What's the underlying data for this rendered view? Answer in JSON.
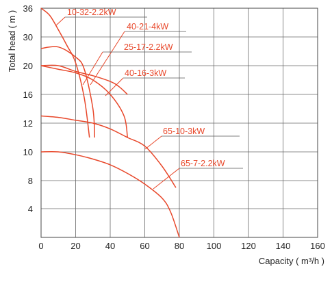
{
  "chart_data": {
    "type": "line",
    "title": "",
    "xlabel": "Capacity ( m³/h )",
    "ylabel": "Total head ( m )",
    "xlim": [
      0,
      160
    ],
    "x_ticks": [
      "0",
      "20",
      "40",
      "60",
      "80",
      "100",
      "120",
      "140",
      "160"
    ],
    "y_tick_labels": [
      "4",
      "8",
      "10",
      "12",
      "16",
      "20",
      "30",
      "36"
    ],
    "y_axis_note": "non-uniform scale; bottom edge = 0",
    "grid": true,
    "series": [
      {
        "name": "10-32-2.2kW",
        "x": [
          0,
          5,
          10,
          15,
          20,
          25,
          28
        ],
        "y": [
          36,
          34.5,
          31.5,
          27,
          21,
          15.5,
          11
        ]
      },
      {
        "name": "40-21-4kW",
        "x": [
          0,
          10,
          20,
          30,
          40,
          48,
          50
        ],
        "y": [
          20,
          19.5,
          19,
          18,
          16,
          13,
          11
        ]
      },
      {
        "name": "25-17-2.2kW",
        "x": [
          0,
          10,
          20,
          25,
          30,
          31
        ],
        "y": [
          26,
          26.5,
          23,
          19.5,
          14,
          11
        ]
      },
      {
        "name": "40-16-3kW",
        "x": [
          0,
          10,
          20,
          30,
          40,
          45,
          50
        ],
        "y": [
          20,
          20,
          19.2,
          18.6,
          17.8,
          17.1,
          16
        ]
      },
      {
        "name": "65-10-3kW",
        "x": [
          0,
          10,
          20,
          30,
          40,
          50,
          60,
          70,
          78
        ],
        "y": [
          13,
          12.8,
          12.4,
          12,
          11.6,
          11,
          10.4,
          9,
          7
        ]
      },
      {
        "name": "65-7-2.2kW",
        "x": [
          0,
          10,
          20,
          30,
          40,
          50,
          60,
          70,
          75,
          80
        ],
        "y": [
          10,
          10,
          9.8,
          9.5,
          9.1,
          8.5,
          7.5,
          5.5,
          3.5,
          0
        ]
      }
    ]
  }
}
